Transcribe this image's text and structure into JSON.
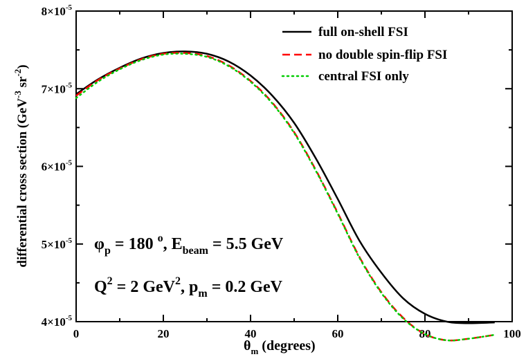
{
  "chart_data": {
    "type": "line",
    "xlabel": "θm (degrees)",
    "xlabel_parts": {
      "symbol": "θ",
      "sub": "m",
      "rest": "(degrees)"
    },
    "ylabel": "differential cross section (GeV-3 sr-2)",
    "ylabel_parts": {
      "main": "differential cross section (GeV",
      "exp1": "-3",
      "mid": "sr",
      "exp2": "-2",
      "end": ")"
    },
    "xlim": [
      0,
      100
    ],
    "ylim": [
      4e-05,
      8e-05
    ],
    "x_ticks": [
      {
        "value": 0,
        "label": "0"
      },
      {
        "value": 20,
        "label": "20"
      },
      {
        "value": 40,
        "label": "40"
      },
      {
        "value": 60,
        "label": "60"
      },
      {
        "value": 80,
        "label": "80"
      },
      {
        "value": 100,
        "label": "100"
      }
    ],
    "y_ticks": [
      {
        "value": 4e-05,
        "mant": "4×10",
        "exp": "-5"
      },
      {
        "value": 5e-05,
        "mant": "5×10",
        "exp": "-5"
      },
      {
        "value": 6e-05,
        "mant": "6×10",
        "exp": "-5"
      },
      {
        "value": 7e-05,
        "mant": "7×10",
        "exp": "-5"
      },
      {
        "value": 8e-05,
        "mant": "8×10",
        "exp": "-5"
      }
    ],
    "grid": false,
    "legend_position": "top-right",
    "series": [
      {
        "name": "full on-shell FSI",
        "color": "#000000",
        "dash": "solid",
        "x": [
          0,
          5,
          10,
          15,
          20,
          25,
          30,
          35,
          40,
          45,
          50,
          55,
          60,
          65,
          70,
          75,
          80,
          85,
          90,
          96
        ],
        "y": [
          6.93e-05,
          7.12e-05,
          7.27e-05,
          7.39e-05,
          7.46e-05,
          7.48e-05,
          7.45e-05,
          7.35e-05,
          7.17e-05,
          6.91e-05,
          6.56e-05,
          6.1e-05,
          5.58e-05,
          5.04e-05,
          4.63e-05,
          4.3e-05,
          4.1e-05,
          4e-05,
          3.98e-05,
          3.99e-05
        ]
      },
      {
        "name": "no double spin-flip FSI",
        "color": "#ff0000",
        "dash": "dashed",
        "x": [
          0,
          5,
          10,
          15,
          20,
          25,
          30,
          35,
          40,
          45,
          50,
          55,
          60,
          65,
          70,
          75,
          80,
          85,
          90,
          96
        ],
        "y": [
          6.91e-05,
          7.11e-05,
          7.26e-05,
          7.38e-05,
          7.45e-05,
          7.46e-05,
          7.42e-05,
          7.3e-05,
          7.1e-05,
          6.82e-05,
          6.44e-05,
          5.95e-05,
          5.4e-05,
          4.83e-05,
          4.38e-05,
          4.05e-05,
          3.84e-05,
          3.76e-05,
          3.78e-05,
          3.83e-05
        ]
      },
      {
        "name": "central FSI only",
        "color": "#00cc00",
        "dash": "dotted",
        "x": [
          0,
          5,
          10,
          15,
          20,
          25,
          30,
          35,
          40,
          45,
          50,
          55,
          60,
          65,
          70,
          75,
          80,
          85,
          90,
          96
        ],
        "y": [
          6.88e-05,
          7.09e-05,
          7.25e-05,
          7.37e-05,
          7.44e-05,
          7.45e-05,
          7.41e-05,
          7.29e-05,
          7.09e-05,
          6.81e-05,
          6.43e-05,
          5.94e-05,
          5.39e-05,
          4.82e-05,
          4.37e-05,
          4.04e-05,
          3.84e-05,
          3.76e-05,
          3.78e-05,
          3.83e-05
        ]
      }
    ],
    "annotations": [
      {
        "id": "anno1",
        "parts": {
          "s1": "φ",
          "sub1": "p",
          "t1": " = 180 ",
          "sup1": "o",
          "t2": ", E",
          "sub2": "beam",
          "t3": " = 5.5 GeV"
        }
      },
      {
        "id": "anno2",
        "parts": {
          "s1": "Q",
          "sup1": "2",
          "t1": " = 2 GeV",
          "sup2": "2",
          "t2": ", p",
          "sub2": "m",
          "t3": " = 0.2 GeV"
        }
      }
    ]
  }
}
